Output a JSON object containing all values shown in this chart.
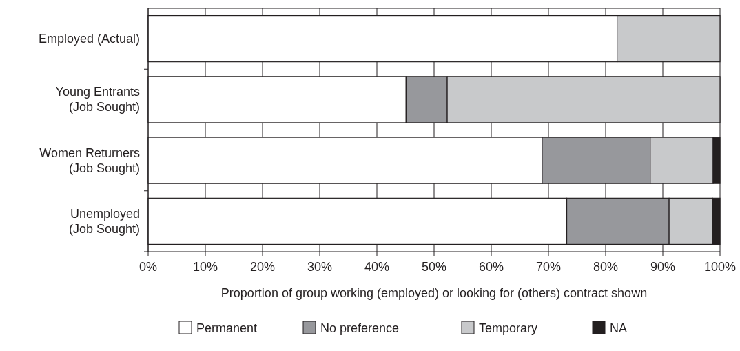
{
  "chart_data": {
    "type": "bar",
    "orientation": "horizontal",
    "stacked": true,
    "categories": [
      "Employed (Actual)",
      "Young Entrants\n(Job Sought)",
      "Women Returners\n(Job Sought)",
      "Unemployed\n(Job Sought)"
    ],
    "series": [
      {
        "name": "Permanent",
        "color": "#ffffff",
        "values": [
          82,
          45.1,
          68.9,
          73.2
        ]
      },
      {
        "name": "No preference",
        "color": "#97989c",
        "values": [
          0,
          7.2,
          18.9,
          17.9
        ]
      },
      {
        "name": "Temporary",
        "color": "#c8c9cb",
        "values": [
          18,
          47.7,
          11,
          7.6
        ]
      },
      {
        "name": "NA",
        "color": "#231f20",
        "values": [
          0,
          0,
          1.2,
          1.3
        ]
      }
    ],
    "xlim": [
      0,
      100
    ],
    "xticks": [
      {
        "value": 0,
        "label": "0%"
      },
      {
        "value": 10,
        "label": "10%"
      },
      {
        "value": 20,
        "label": "20%"
      },
      {
        "value": 30,
        "label": "30%"
      },
      {
        "value": 40,
        "label": "40%"
      },
      {
        "value": 50,
        "label": "50%"
      },
      {
        "value": 60,
        "label": "60%"
      },
      {
        "value": 70,
        "label": "70%"
      },
      {
        "value": 80,
        "label": "80%"
      },
      {
        "value": 90,
        "label": "90%"
      },
      {
        "value": 100,
        "label": "100%"
      }
    ],
    "xlabel": "Proportion of group working (employed) or looking for (others) contract shown",
    "grid": "x",
    "legend": "bottom"
  }
}
